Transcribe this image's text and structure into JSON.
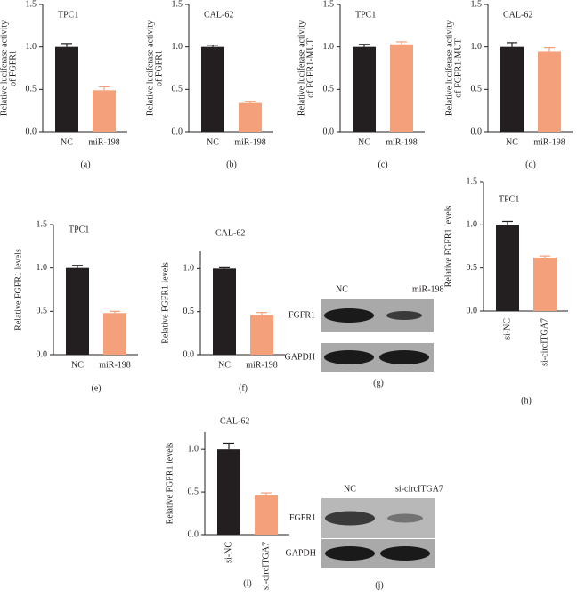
{
  "chart_data": [
    {
      "type": "bar",
      "title": "TPC1",
      "ylabel": [
        "Relative luciferase activity",
        "of FGFR1"
      ],
      "categories": [
        "NC",
        "miR-198"
      ],
      "values": [
        1.0,
        0.49
      ],
      "errors": [
        0.04,
        0.04
      ],
      "colors": [
        "#231f20",
        "#f4a07a"
      ],
      "ylim": [
        0,
        1.5
      ],
      "yticks": [
        {
          "value": 0,
          "label": "0.0"
        },
        {
          "value": 0.5,
          "label": "0.5"
        },
        {
          "value": 1,
          "label": "1.0"
        },
        {
          "value": 1.5,
          "label": "1.5"
        }
      ],
      "caption": "(a)"
    },
    {
      "type": "bar",
      "title": "CAL-62",
      "ylabel": [
        "Relative luciferase activity",
        "of FGFR1"
      ],
      "categories": [
        "NC",
        "miR-198"
      ],
      "values": [
        1.0,
        0.34
      ],
      "errors": [
        0.02,
        0.02
      ],
      "colors": [
        "#231f20",
        "#f4a07a"
      ],
      "ylim": [
        0,
        1.5
      ],
      "yticks": [
        {
          "value": 0,
          "label": "0.0"
        },
        {
          "value": 0.5,
          "label": "0.5"
        },
        {
          "value": 1,
          "label": "1.0"
        },
        {
          "value": 1.5,
          "label": "1.5"
        }
      ],
      "caption": "(b)"
    },
    {
      "type": "bar",
      "title": "TPC1",
      "ylabel": [
        "Relative luciferase activity",
        "of FGFR1-MUT"
      ],
      "categories": [
        "NC",
        "miR-198"
      ],
      "values": [
        1.0,
        1.03
      ],
      "errors": [
        0.03,
        0.03
      ],
      "colors": [
        "#231f20",
        "#f4a07a"
      ],
      "ylim": [
        0,
        1.5
      ],
      "yticks": [
        {
          "value": 0,
          "label": "0.0"
        },
        {
          "value": 0.5,
          "label": "0.5"
        },
        {
          "value": 1,
          "label": "1.0"
        },
        {
          "value": 1.5,
          "label": "1.5"
        }
      ],
      "caption": "(c)"
    },
    {
      "type": "bar",
      "title": "CAL-62",
      "ylabel": [
        "Relative luciferase activity",
        "of FGFR1-MUT"
      ],
      "categories": [
        "NC",
        "miR-198"
      ],
      "values": [
        1.0,
        0.95
      ],
      "errors": [
        0.05,
        0.04
      ],
      "colors": [
        "#231f20",
        "#f4a07a"
      ],
      "ylim": [
        0,
        1.5
      ],
      "yticks": [
        {
          "value": 0,
          "label": "0.0"
        },
        {
          "value": 0.5,
          "label": "0.5"
        },
        {
          "value": 1,
          "label": "1.0"
        },
        {
          "value": 1.5,
          "label": "1.5"
        }
      ],
      "caption": "(d)"
    },
    {
      "type": "bar",
      "title": "TPC1",
      "ylabel": [
        "Relative FGFR1 levels"
      ],
      "categories": [
        "NC",
        "miR-198"
      ],
      "values": [
        1.0,
        0.48
      ],
      "errors": [
        0.03,
        0.02
      ],
      "colors": [
        "#231f20",
        "#f4a07a"
      ],
      "ylim": [
        0,
        1.5
      ],
      "yticks": [
        {
          "value": 0,
          "label": "0.0"
        },
        {
          "value": 0.5,
          "label": "0.5"
        },
        {
          "value": 1,
          "label": "1.0"
        },
        {
          "value": 1.5,
          "label": "1.5"
        }
      ],
      "caption": "(e)"
    },
    {
      "type": "bar",
      "title": "CAL-62",
      "ylabel": [
        "Relative FGFR1 levels"
      ],
      "categories": [
        "NC",
        "miR-198"
      ],
      "values": [
        1.0,
        0.46
      ],
      "errors": [
        0.01,
        0.03
      ],
      "colors": [
        "#231f20",
        "#f4a07a"
      ],
      "ylim": [
        0,
        1.2
      ],
      "yticks": [
        {
          "value": 0,
          "label": "0.0"
        },
        {
          "value": 0.5,
          "label": "0.5"
        },
        {
          "value": 1,
          "label": "1.0"
        }
      ],
      "caption": "(f)"
    },
    {
      "type": "bar",
      "title": "TPC1",
      "ylabel": [
        "Relative FGFR1 levels"
      ],
      "categories": [
        "si-NC",
        "si-circITGA7"
      ],
      "values": [
        1.0,
        0.62
      ],
      "errors": [
        0.04,
        0.02
      ],
      "colors": [
        "#231f20",
        "#f4a07a"
      ],
      "ylim": [
        0,
        1.5
      ],
      "yticks": [
        {
          "value": 0,
          "label": "0.0"
        },
        {
          "value": 0.5,
          "label": "0.5"
        },
        {
          "value": 1,
          "label": "1.0"
        },
        {
          "value": 1.5,
          "label": "1.5"
        }
      ],
      "caption": "(h)"
    },
    {
      "type": "bar",
      "title": "CAL-62",
      "ylabel": [
        "Relative FGFR1 levels"
      ],
      "categories": [
        "si-NC",
        "si-circITGA7"
      ],
      "values": [
        1.0,
        0.46
      ],
      "errors": [
        0.07,
        0.03
      ],
      "colors": [
        "#231f20",
        "#f4a07a"
      ],
      "ylim": [
        0,
        1.2
      ],
      "yticks": [
        {
          "value": 0,
          "label": "0.0"
        },
        {
          "value": 0.5,
          "label": "0.5"
        },
        {
          "value": 1,
          "label": "1.0"
        }
      ],
      "caption": "(i)"
    }
  ],
  "blots": [
    {
      "lanes": [
        "NC",
        "miR-198"
      ],
      "rows": [
        "FGFR1",
        "GAPDH"
      ],
      "caption": "(g)"
    },
    {
      "lanes": [
        "NC",
        "si-circITGA7"
      ],
      "rows": [
        "FGFR1",
        "GAPDH"
      ],
      "caption": "(j)"
    }
  ]
}
